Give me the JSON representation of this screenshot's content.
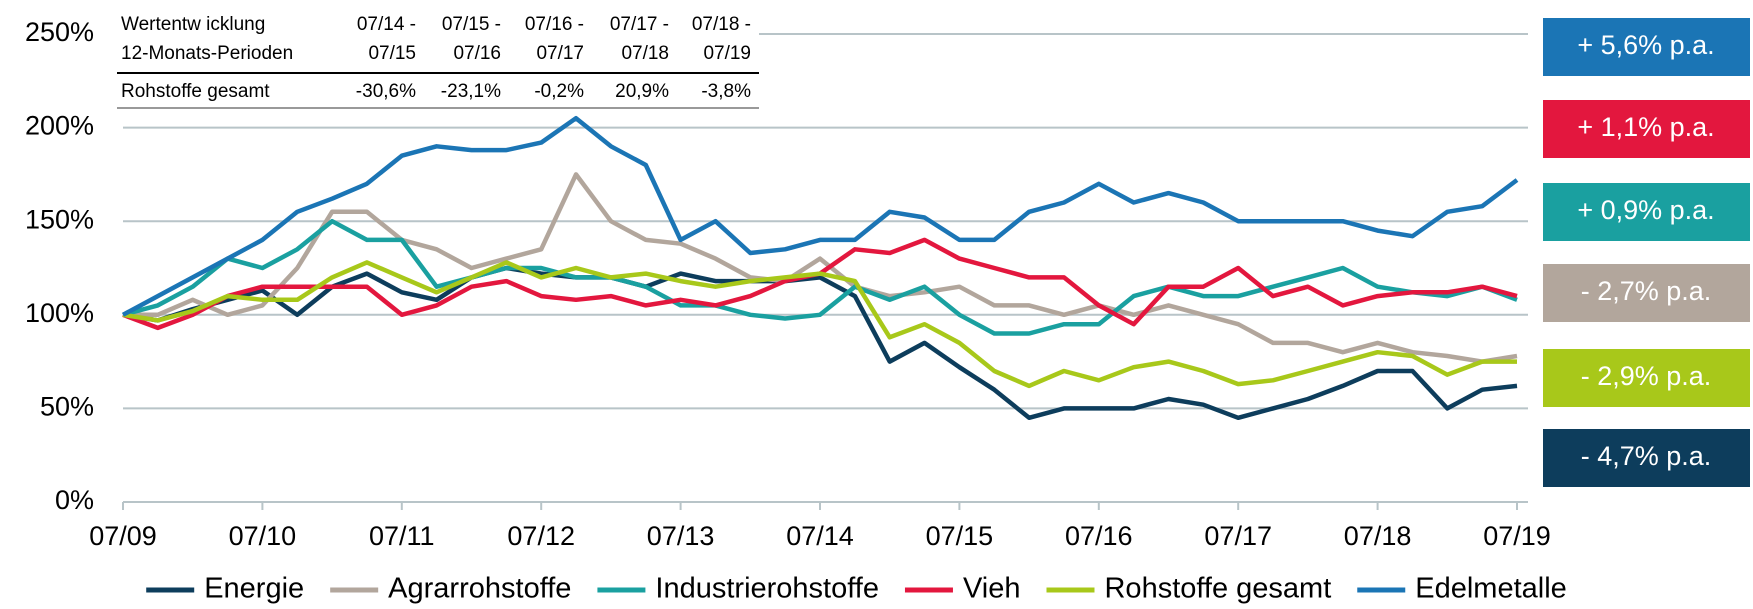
{
  "chart_data": {
    "type": "line",
    "categories": [
      "07/09",
      null,
      null,
      null,
      "07/10",
      null,
      null,
      null,
      "07/11",
      null,
      null,
      null,
      "07/12",
      null,
      null,
      null,
      "07/13",
      null,
      null,
      null,
      "07/14",
      null,
      null,
      null,
      "07/15",
      null,
      null,
      null,
      "07/16",
      null,
      null,
      null,
      "07/17",
      null,
      null,
      null,
      "07/18",
      null,
      null,
      null,
      "07/19"
    ],
    "series": [
      {
        "name": "Energie",
        "color": "#0d3d5c",
        "values": [
          100,
          97,
          103,
          108,
          113,
          100,
          115,
          122,
          112,
          108,
          120,
          125,
          122,
          120,
          120,
          115,
          122,
          118,
          118,
          118,
          120,
          110,
          75,
          85,
          72,
          60,
          45,
          50,
          50,
          50,
          55,
          52,
          45,
          50,
          55,
          62,
          70,
          70,
          50,
          60,
          62
        ]
      },
      {
        "name": "Agrarrohstoffe",
        "color": "#b2a69c",
        "values": [
          100,
          100,
          108,
          100,
          105,
          125,
          155,
          155,
          140,
          135,
          125,
          130,
          135,
          175,
          150,
          140,
          138,
          130,
          120,
          118,
          130,
          115,
          110,
          112,
          115,
          105,
          105,
          100,
          105,
          100,
          105,
          100,
          95,
          85,
          85,
          80,
          85,
          80,
          78,
          75,
          78
        ]
      },
      {
        "name": "Industrierohstoffe",
        "color": "#1aa0a0",
        "values": [
          100,
          105,
          115,
          130,
          125,
          135,
          150,
          140,
          140,
          115,
          120,
          125,
          125,
          120,
          120,
          115,
          105,
          105,
          100,
          98,
          100,
          115,
          108,
          115,
          100,
          90,
          90,
          95,
          95,
          110,
          115,
          110,
          110,
          115,
          120,
          125,
          115,
          112,
          110,
          115,
          108
        ]
      },
      {
        "name": "Vieh",
        "color": "#e3173e",
        "values": [
          100,
          93,
          100,
          110,
          115,
          115,
          115,
          115,
          100,
          105,
          115,
          118,
          110,
          108,
          110,
          105,
          108,
          105,
          110,
          118,
          122,
          135,
          133,
          140,
          130,
          125,
          120,
          120,
          105,
          95,
          115,
          115,
          125,
          110,
          115,
          105,
          110,
          112,
          112,
          115,
          110
        ]
      },
      {
        "name": "Rohstoffe gesamt",
        "color": "#a8c81a",
        "values": [
          100,
          97,
          102,
          110,
          108,
          108,
          120,
          128,
          120,
          112,
          120,
          128,
          120,
          125,
          120,
          122,
          118,
          115,
          118,
          120,
          122,
          118,
          88,
          95,
          85,
          70,
          62,
          70,
          65,
          72,
          75,
          70,
          63,
          65,
          70,
          75,
          80,
          78,
          68,
          75,
          75
        ]
      },
      {
        "name": "Edelmetalle",
        "color": "#1b75b5",
        "values": [
          100,
          110,
          120,
          130,
          140,
          155,
          162,
          170,
          185,
          190,
          188,
          188,
          192,
          205,
          190,
          180,
          140,
          150,
          133,
          135,
          140,
          140,
          155,
          152,
          140,
          140,
          155,
          160,
          170,
          160,
          165,
          160,
          150,
          150,
          150,
          150,
          145,
          142,
          155,
          158,
          172
        ]
      }
    ],
    "ylim": [
      0,
      250
    ],
    "yticks": [
      {
        "value": 0,
        "label": "0%"
      },
      {
        "value": 50,
        "label": "50%"
      },
      {
        "value": 100,
        "label": "100%"
      },
      {
        "value": 150,
        "label": "150%"
      },
      {
        "value": 200,
        "label": "200%"
      },
      {
        "value": 250,
        "label": "250%"
      }
    ],
    "grid": true,
    "legend": "bottom",
    "annotations": [
      {
        "text": "+ 5,6% p.a.",
        "color": "#1b75b5"
      },
      {
        "text": "+ 1,1% p.a.",
        "color": "#e3173e"
      },
      {
        "text": "+ 0,9% p.a.",
        "color": "#1aa0a0"
      },
      {
        "text": "- 2,7% p.a.",
        "color": "#b2a69c"
      },
      {
        "text": "- 2,9% p.a.",
        "color": "#a8c81a"
      },
      {
        "text": "- 4,7% p.a.",
        "color": "#0d3d5c"
      }
    ],
    "table": {
      "header": [
        [
          "Wertentw icklung",
          "07/14 -",
          "07/15 -",
          "07/16 -",
          "07/17 -",
          "07/18 -"
        ],
        [
          "12-Monats-Perioden",
          "07/15",
          "07/16",
          "07/17",
          "07/18",
          "07/19"
        ]
      ],
      "rows": [
        [
          "Rohstoffe gesamt",
          "-30,6%",
          "-23,1%",
          "-0,2%",
          "20,9%",
          "-3,8%"
        ]
      ]
    }
  }
}
